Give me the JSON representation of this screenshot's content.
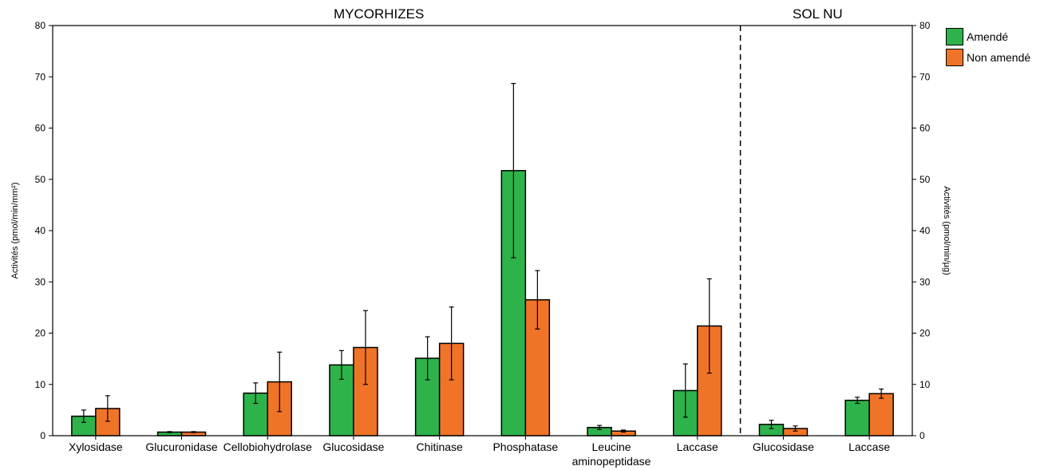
{
  "chart_data": {
    "type": "bar",
    "section_titles": {
      "left": "MYCORHIZES",
      "right": "SOL NU"
    },
    "ylabel_left": "Activités (pmol/min/mm²)",
    "ylabel_right": "Activités (pmol/min/µg)",
    "ylim": [
      0,
      80
    ],
    "yticks": [
      0,
      10,
      20,
      30,
      40,
      50,
      60,
      70,
      80
    ],
    "colors": {
      "Amendé": "#2db34a",
      "Non amendé": "#f07427"
    },
    "series": [
      {
        "name": "Amendé",
        "values": [
          3.8,
          0.7,
          8.3,
          13.8,
          15.1,
          51.7,
          1.6,
          8.8,
          2.2,
          6.9
        ],
        "errors": [
          1.2,
          0.1,
          2.0,
          2.8,
          4.2,
          17.0,
          0.4,
          5.2,
          0.8,
          0.6
        ]
      },
      {
        "name": "Non amendé",
        "values": [
          5.3,
          0.7,
          10.5,
          17.2,
          18.0,
          26.5,
          0.9,
          21.4,
          1.4,
          8.2
        ],
        "errors": [
          2.5,
          0.1,
          5.8,
          7.2,
          7.1,
          5.7,
          0.2,
          9.2,
          0.5,
          0.9
        ]
      }
    ],
    "categories": [
      {
        "label": "Xylosidase",
        "group": "MYCORHIZES"
      },
      {
        "label": "Glucuronidase",
        "group": "MYCORHIZES"
      },
      {
        "label": "Cellobiohydrolase",
        "group": "MYCORHIZES"
      },
      {
        "label": "Glucosidase",
        "group": "MYCORHIZES"
      },
      {
        "label": "Chitinase",
        "group": "MYCORHIZES"
      },
      {
        "label": "Phosphatase",
        "group": "MYCORHIZES"
      },
      {
        "label": "Leucine aminopeptidase",
        "group": "MYCORHIZES"
      },
      {
        "label": "Laccase",
        "group": "MYCORHIZES"
      },
      {
        "label": "Glucosidase",
        "group": "SOL NU"
      },
      {
        "label": "Laccase",
        "group": "SOL NU"
      }
    ],
    "legend": [
      "Amendé",
      "Non amendé"
    ],
    "legend_position": "top-right",
    "grid": false
  }
}
